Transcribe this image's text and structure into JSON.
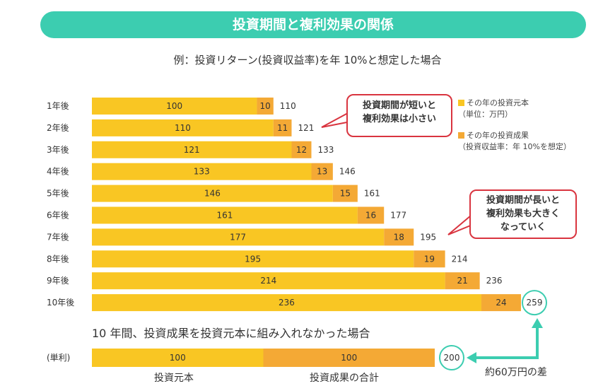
{
  "title": "投資期間と複利効果の関係",
  "subtitle": "例：投資リターン(投資収益率)を年 10%と想定した場合",
  "legend": {
    "principal": "その年の投資元本",
    "principal_note": "（単位：万円）",
    "gain": "その年の投資成果",
    "gain_note": "（投資収益率：年 10%を想定）"
  },
  "callouts": {
    "short": [
      "投資期間が短いと",
      "複利効果は小さい"
    ],
    "long": [
      "投資期間が長いと",
      "複利効果も大きく",
      "なっていく"
    ]
  },
  "colors": {
    "principal": "#f9c623",
    "gain": "#f4a935",
    "accent": "#3ccdb0",
    "callout_border": "#d9343f"
  },
  "chart_data": {
    "type": "bar",
    "orientation": "horizontal",
    "stacked": true,
    "categories": [
      "1年後",
      "2年後",
      "3年後",
      "4年後",
      "5年後",
      "6年後",
      "7年後",
      "8年後",
      "9年後",
      "10年後"
    ],
    "series": [
      {
        "name": "その年の投資元本",
        "values": [
          100,
          110,
          121,
          133,
          146,
          161,
          177,
          195,
          214,
          236
        ]
      },
      {
        "name": "その年の投資成果",
        "values": [
          10,
          11,
          12,
          13,
          15,
          16,
          18,
          19,
          21,
          24
        ]
      }
    ],
    "totals": [
      110,
      121,
      133,
      146,
      161,
      177,
      195,
      214,
      236,
      259
    ],
    "simple_interest": {
      "section_title": "10 年間、投資成果を投資元本に組み入れなかった場合",
      "row_label": "(単利)",
      "values": [
        100,
        100
      ],
      "total": 200,
      "segment_labels": [
        "投資元本",
        "投資成果の合計"
      ]
    },
    "difference_label": "約60万円の差"
  }
}
